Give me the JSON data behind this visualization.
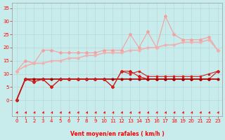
{
  "x": [
    0,
    1,
    2,
    3,
    4,
    5,
    6,
    7,
    8,
    9,
    10,
    11,
    12,
    13,
    14,
    15,
    16,
    17,
    18,
    19,
    20,
    21,
    22,
    23
  ],
  "line_rafalles_jagged": [
    11,
    15,
    14,
    19,
    19,
    18,
    18,
    18,
    18,
    18,
    19,
    19,
    19,
    25,
    20,
    26,
    20,
    32,
    25,
    23,
    23,
    23,
    24,
    19
  ],
  "line_rafalles_smooth": [
    11,
    13,
    14,
    14,
    15,
    15,
    16,
    16,
    17,
    17,
    18,
    18,
    18,
    19,
    19,
    20,
    20,
    21,
    21,
    22,
    22,
    22,
    23,
    19
  ],
  "line_moyen_jagged": [
    0,
    8,
    7,
    8,
    5,
    8,
    8,
    8,
    8,
    8,
    8,
    5,
    11,
    11,
    9,
    8,
    8,
    8,
    8,
    8,
    8,
    8,
    8,
    11
  ],
  "line_moyen_smooth": [
    0,
    8,
    8,
    8,
    8,
    8,
    8,
    8,
    8,
    8,
    8,
    8,
    8,
    8,
    8,
    8,
    8,
    8,
    8,
    8,
    8,
    8,
    8,
    8
  ],
  "line_moyen_trend": [
    0,
    8,
    7,
    8,
    5,
    8,
    8,
    8,
    8,
    8,
    8,
    5,
    11,
    10,
    11,
    9,
    9,
    9,
    9,
    9,
    9,
    9,
    10,
    11
  ],
  "color_light1": "#f4a0a0",
  "color_light2": "#f0b0b0",
  "color_dark1": "#dd1111",
  "color_dark2": "#aa0000",
  "color_dark3": "#cc2222",
  "bg_color": "#c8ecec",
  "xlabel": "Vent moyen/en rafales ( km/h )",
  "ylim": [
    -6,
    37
  ],
  "xlim": [
    -0.5,
    23.5
  ],
  "yticks": [
    0,
    5,
    10,
    15,
    20,
    25,
    30,
    35
  ],
  "xticks": [
    0,
    1,
    2,
    3,
    4,
    5,
    6,
    7,
    8,
    9,
    10,
    11,
    12,
    13,
    14,
    15,
    16,
    17,
    18,
    19,
    20,
    21,
    22,
    23
  ]
}
